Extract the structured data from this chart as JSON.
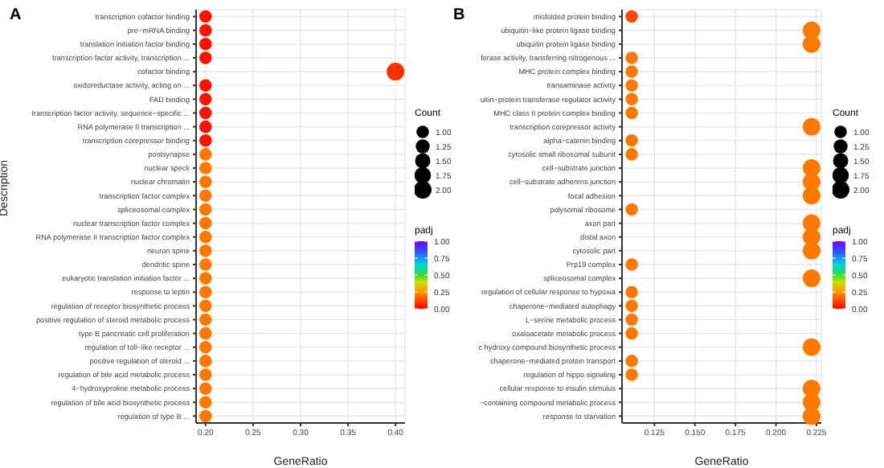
{
  "chart_data": [
    {
      "type": "scatter",
      "orientation": "horizontal",
      "title": "A",
      "xlabel": "GeneRatio",
      "ylabel": "Description",
      "legend_title": "Count",
      "clabel": "padj",
      "grid": true,
      "categories": [
        "transcription cofactor binding",
        "pre−mRNA binding",
        "translation initiation factor binding",
        "transcription factor activity, transcription ...",
        "cofactor binding",
        "oxidoreductase activity, acting on ...",
        "FAD binding",
        "transcription factor activity, sequence−specific ...",
        "RNA polymerase II transcription ...",
        "transcription corepressor binding",
        "postsynapse",
        "nuclear speck",
        "nuclear chromatin",
        "transcription factor complex",
        "spliceosomal complex",
        "nuclear transcription factor complex",
        "RNA polymerase II transcription factor complex",
        "neuron spine",
        "dendritic spine",
        "eukaryotic translation initiation factor ...",
        "response to leptin",
        "regulation of receptor biosynthetic process",
        "positive regulation of steroid metabolic process",
        "type B pancreatic cell proliferation",
        "regulation of toll−like receptor ...",
        "positive regulation of steroid ...",
        "regulation of bile acid metabolic process",
        "4−hydroxyproline metabolic process",
        "regulation of bile acid biosynthetic process",
        "regulation of type B ..."
      ],
      "values": [
        0.2,
        0.2,
        0.2,
        0.2,
        0.4,
        0.2,
        0.2,
        0.2,
        0.2,
        0.2,
        0.2,
        0.2,
        0.2,
        0.2,
        0.2,
        0.2,
        0.2,
        0.2,
        0.2,
        0.2,
        0.2,
        0.2,
        0.2,
        0.2,
        0.2,
        0.2,
        0.2,
        0.2,
        0.2,
        0.2
      ],
      "sizes": [
        1,
        1,
        1,
        1,
        2,
        1,
        1,
        1,
        1,
        1,
        1,
        1,
        1,
        1,
        1,
        1,
        1,
        1,
        1,
        1,
        1,
        1,
        1,
        1,
        1,
        1,
        1,
        1,
        1,
        1
      ],
      "cvalues": [
        0.03,
        0.03,
        0.03,
        0.03,
        0.08,
        0.03,
        0.03,
        0.03,
        0.03,
        0.03,
        0.2,
        0.2,
        0.2,
        0.2,
        0.2,
        0.2,
        0.2,
        0.2,
        0.2,
        0.2,
        0.2,
        0.2,
        0.2,
        0.2,
        0.2,
        0.2,
        0.2,
        0.2,
        0.2,
        0.2
      ],
      "xlim": [
        0.19,
        0.41
      ],
      "xticks": [
        {
          "value": 0.2,
          "label": "0.20"
        },
        {
          "value": 0.25,
          "label": "0.25"
        },
        {
          "value": 0.3,
          "label": "0.30"
        },
        {
          "value": 0.35,
          "label": "0.35"
        },
        {
          "value": 0.4,
          "label": "0.40"
        }
      ],
      "size_legend": [
        {
          "value": 1,
          "label": "1.00"
        },
        {
          "value": 1.25,
          "label": "1.25"
        },
        {
          "value": 1.5,
          "label": "1.50"
        },
        {
          "value": 1.75,
          "label": "1.75"
        },
        {
          "value": 2,
          "label": "2.00"
        }
      ],
      "clim": [
        0,
        1
      ],
      "cticks": [
        {
          "value": 1,
          "label": "1.00"
        },
        {
          "value": 0.75,
          "label": "0.75"
        },
        {
          "value": 0.5,
          "label": "0.50"
        },
        {
          "value": 0.25,
          "label": "0.25"
        },
        {
          "value": 0,
          "label": "0.00"
        }
      ]
    },
    {
      "type": "scatter",
      "orientation": "horizontal",
      "title": "B",
      "xlabel": "GeneRatio",
      "legend_title": "Count",
      "clabel": "padj",
      "grid": true,
      "categories": [
        "misfolded protein binding",
        "ubiquitin−like protein ligase binding",
        "ubiquitin protein ligase binding",
        "ferase activity, transferring nitrogenous ...",
        "MHC protein complex binding",
        "transaminase activity",
        "uitin−protein transferase regulator activity",
        "MHC class II protein complex binding",
        "transcription corepressor activity",
        "alpha−catenin binding",
        "cytosolic small ribosomal subunit",
        "cell−substrate junction",
        "cell−substrate adherens junction",
        "focal adhesion",
        "polysomal ribosome",
        "axon part",
        "distal axon",
        "cytosolic part",
        "Prp19 complex",
        "spliceosomal complex",
        "regulation of cellular response to hypoxia",
        "chaperone−mediated autophagy",
        "L−serine metabolic process",
        "oxaloacetate metabolic process",
        "c hydroxy compound biosynthetic process",
        "chaperone−mediated protein transport",
        "regulation of hippo signaling",
        "cellular response to insulin stimulus",
        "−containing compound metabolic process",
        "response to starvation"
      ],
      "values": [
        0.111,
        0.222,
        0.222,
        0.111,
        0.111,
        0.111,
        0.111,
        0.111,
        0.222,
        0.111,
        0.111,
        0.222,
        0.222,
        0.222,
        0.111,
        0.222,
        0.222,
        0.222,
        0.111,
        0.222,
        0.111,
        0.111,
        0.111,
        0.111,
        0.222,
        0.111,
        0.111,
        0.222,
        0.222,
        0.222
      ],
      "sizes": [
        1,
        2,
        2,
        1,
        1,
        1,
        1,
        1,
        2,
        1,
        1,
        2,
        2,
        2,
        1,
        2,
        2,
        2,
        1,
        2,
        1,
        1,
        1,
        1,
        2,
        1,
        1,
        2,
        2,
        2
      ],
      "cvalues": [
        0.12,
        0.2,
        0.2,
        0.2,
        0.2,
        0.2,
        0.2,
        0.2,
        0.2,
        0.2,
        0.2,
        0.2,
        0.2,
        0.2,
        0.2,
        0.2,
        0.2,
        0.2,
        0.2,
        0.2,
        0.2,
        0.2,
        0.2,
        0.2,
        0.2,
        0.2,
        0.2,
        0.2,
        0.2,
        0.2
      ],
      "xlim": [
        0.105,
        0.228
      ],
      "xticks": [
        {
          "value": 0.125,
          "label": "0.125"
        },
        {
          "value": 0.15,
          "label": "0.150"
        },
        {
          "value": 0.175,
          "label": "0.175"
        },
        {
          "value": 0.2,
          "label": "0.200"
        },
        {
          "value": 0.225,
          "label": "0.225"
        }
      ],
      "size_legend": [
        {
          "value": 1,
          "label": "1.00"
        },
        {
          "value": 1.25,
          "label": "1.25"
        },
        {
          "value": 1.5,
          "label": "1.50"
        },
        {
          "value": 1.75,
          "label": "1.75"
        },
        {
          "value": 2,
          "label": "2.00"
        }
      ],
      "clim": [
        0,
        1
      ],
      "cticks": [
        {
          "value": 1,
          "label": "1.00"
        },
        {
          "value": 0.75,
          "label": "0.75"
        },
        {
          "value": 0.5,
          "label": "0.50"
        },
        {
          "value": 0.25,
          "label": "0.25"
        },
        {
          "value": 0,
          "label": "0.00"
        }
      ]
    }
  ]
}
